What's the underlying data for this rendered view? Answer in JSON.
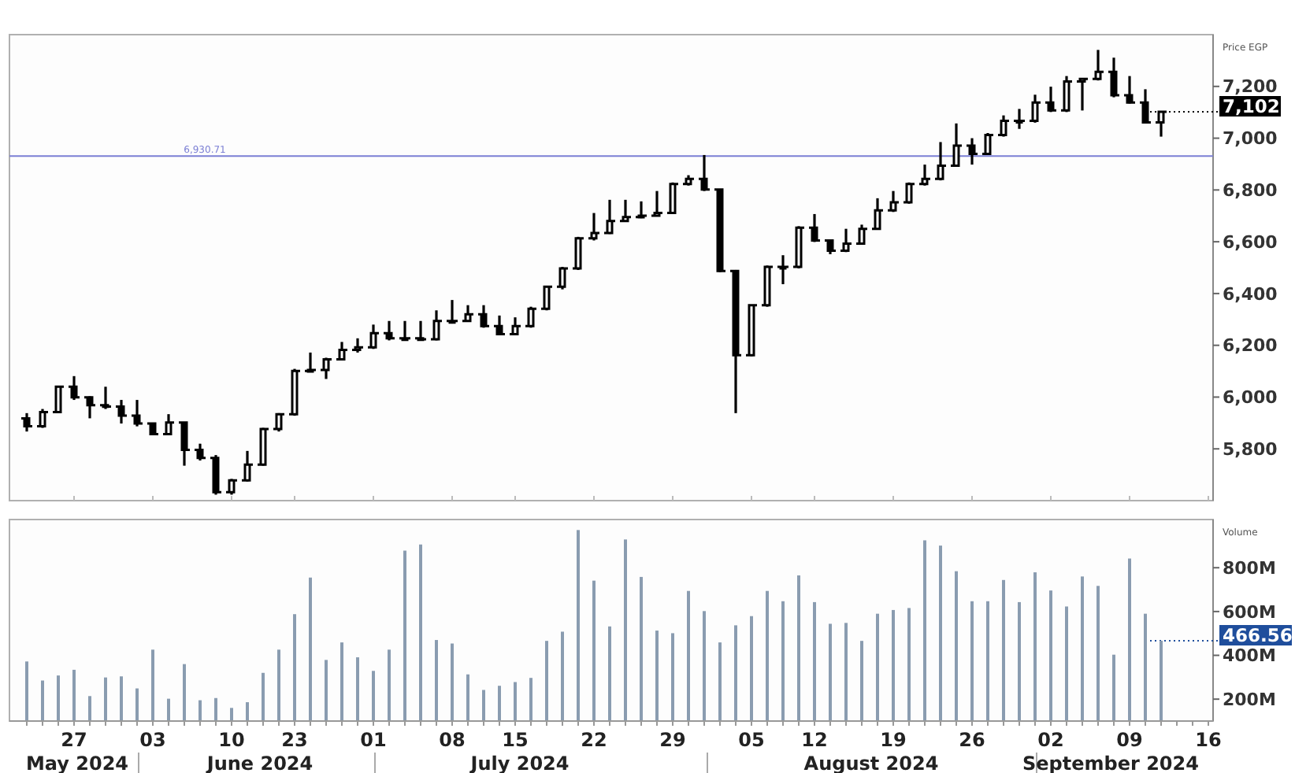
{
  "chart_data": [
    {
      "type": "candlestick",
      "ylabel": "Price EGP",
      "tick_labels": "y",
      "grid": false,
      "color": "#000000",
      "categories": [
        null,
        null,
        null,
        "27",
        null,
        null,
        null,
        null,
        "03",
        null,
        null,
        null,
        null,
        "10",
        null,
        null,
        null,
        "23",
        null,
        null,
        null,
        null,
        "01",
        null,
        null,
        null,
        null,
        "08",
        null,
        null,
        null,
        "15",
        null,
        null,
        null,
        null,
        "22",
        null,
        null,
        null,
        null,
        "29",
        null,
        null,
        null,
        null,
        "05",
        null,
        null,
        null,
        "12",
        null,
        null,
        null,
        null,
        "19",
        null,
        null,
        null,
        null,
        "26",
        null,
        null,
        null,
        null,
        "02",
        null,
        null,
        null,
        null,
        "09",
        null,
        null,
        null,
        null,
        "16"
      ],
      "ohlc": [
        [
          5918,
          5938,
          5867,
          5887
        ],
        [
          5887,
          5954,
          5881,
          5942
        ],
        [
          5942,
          6044,
          5938,
          6040
        ],
        [
          6040,
          6081,
          5989,
          5999
        ],
        [
          5999,
          6003,
          5918,
          5969
        ],
        [
          5969,
          6040,
          5954,
          5963
        ],
        [
          5963,
          5989,
          5898,
          5928
        ],
        [
          5928,
          5989,
          5887,
          5898
        ],
        [
          5898,
          5898,
          5853,
          5857
        ],
        [
          5857,
          5934,
          5853,
          5902
        ],
        [
          5902,
          5902,
          5735,
          5796
        ],
        [
          5796,
          5820,
          5755,
          5765
        ],
        [
          5765,
          5776,
          5623,
          5633
        ],
        [
          5633,
          5684,
          5623,
          5678
        ],
        [
          5678,
          5792,
          5674,
          5739
        ],
        [
          5739,
          5881,
          5735,
          5877
        ],
        [
          5877,
          5938,
          5867,
          5934
        ],
        [
          5934,
          6109,
          5928,
          6101
        ],
        [
          6101,
          6172,
          6097,
          6105
        ],
        [
          6105,
          6152,
          6070,
          6146
        ],
        [
          6146,
          6213,
          6142,
          6182
        ],
        [
          6182,
          6227,
          6172,
          6192
        ],
        [
          6192,
          6280,
          6186,
          6247
        ],
        [
          6247,
          6294,
          6219,
          6227
        ],
        [
          6227,
          6294,
          6219,
          6227
        ],
        [
          6227,
          6294,
          6219,
          6223
        ],
        [
          6223,
          6335,
          6219,
          6294
        ],
        [
          6294,
          6375,
          6284,
          6294
        ],
        [
          6294,
          6355,
          6294,
          6320
        ],
        [
          6320,
          6355,
          6268,
          6274
        ],
        [
          6274,
          6315,
          6239,
          6243
        ],
        [
          6243,
          6308,
          6239,
          6274
        ],
        [
          6274,
          6349,
          6268,
          6341
        ],
        [
          6341,
          6430,
          6335,
          6426
        ],
        [
          6426,
          6503,
          6416,
          6497
        ],
        [
          6497,
          6619,
          6491,
          6613
        ],
        [
          6613,
          6711,
          6605,
          6634
        ],
        [
          6634,
          6762,
          6630,
          6680
        ],
        [
          6680,
          6762,
          6680,
          6695
        ],
        [
          6695,
          6756,
          6691,
          6701
        ],
        [
          6701,
          6796,
          6701,
          6711
        ],
        [
          6711,
          6829,
          6711,
          6823
        ],
        [
          6823,
          6857,
          6817,
          6843
        ],
        [
          6843,
          6935,
          6796,
          6802
        ],
        [
          6802,
          6802,
          6483,
          6487
        ],
        [
          6487,
          6491,
          5938,
          6162
        ],
        [
          6162,
          6355,
          6158,
          6355
        ],
        [
          6355,
          6508,
          6349,
          6503
        ],
        [
          6503,
          6548,
          6436,
          6503
        ],
        [
          6503,
          6660,
          6497,
          6654
        ],
        [
          6654,
          6707,
          6599,
          6605
        ],
        [
          6605,
          6609,
          6552,
          6565
        ],
        [
          6565,
          6650,
          6560,
          6593
        ],
        [
          6593,
          6666,
          6589,
          6650
        ],
        [
          6650,
          6768,
          6646,
          6721
        ],
        [
          6721,
          6796,
          6715,
          6752
        ],
        [
          6752,
          6829,
          6747,
          6823
        ],
        [
          6823,
          6898,
          6817,
          6843
        ],
        [
          6843,
          6985,
          6837,
          6894
        ],
        [
          6894,
          7057,
          6894,
          6971
        ],
        [
          6971,
          7000,
          6898,
          6939
        ],
        [
          6939,
          7020,
          6935,
          7012
        ],
        [
          7012,
          7088,
          7006,
          7067
        ],
        [
          7067,
          7113,
          7036,
          7067
        ],
        [
          7067,
          7168,
          7060,
          7138
        ],
        [
          7138,
          7199,
          7101,
          7107
        ],
        [
          7107,
          7240,
          7101,
          7219
        ],
        [
          7219,
          7229,
          7107,
          7229
        ],
        [
          7229,
          7341,
          7223,
          7256
        ],
        [
          7256,
          7311,
          7158,
          7166
        ],
        [
          7166,
          7240,
          7134,
          7138
        ],
        [
          7138,
          7189,
          7057,
          7061
        ],
        [
          7061,
          7102,
          7006,
          7102
        ],
        null,
        null,
        null
      ],
      "ylim": [
        5600,
        7400
      ],
      "yticks": [
        {
          "value": 5800,
          "label": "5,800"
        },
        {
          "value": 6000,
          "label": "6,000"
        },
        {
          "value": 6200,
          "label": "6,200"
        },
        {
          "value": 6400,
          "label": "6,400"
        },
        {
          "value": 6600,
          "label": "6,600"
        },
        {
          "value": 6800,
          "label": "6,800"
        },
        {
          "value": 7000,
          "label": "7,000"
        },
        {
          "value": 7200,
          "label": "7,200"
        }
      ],
      "ref_lines": [
        {
          "axis": "y",
          "value": 6930.71,
          "label": "6,930.71",
          "color": "#7b7fd4",
          "line_style": "solid"
        },
        {
          "axis": "y",
          "value": 7102,
          "label": "7,102",
          "color": "#000000",
          "line_style": "dotted"
        }
      ]
    },
    {
      "type": "bar",
      "ylabel": "Volume",
      "grid": false,
      "color": "#8a9cb0",
      "categories": [
        null,
        null,
        null,
        "27",
        null,
        null,
        null,
        null,
        "03",
        null,
        null,
        null,
        null,
        "10",
        null,
        null,
        null,
        "23",
        null,
        null,
        null,
        null,
        "01",
        null,
        null,
        null,
        null,
        "08",
        null,
        null,
        null,
        "15",
        null,
        null,
        null,
        null,
        "22",
        null,
        null,
        null,
        null,
        "29",
        null,
        null,
        null,
        null,
        "05",
        null,
        null,
        null,
        "12",
        null,
        null,
        null,
        null,
        "19",
        null,
        null,
        null,
        null,
        "26",
        null,
        null,
        null,
        null,
        "02",
        null,
        null,
        null,
        null,
        "09",
        null,
        null,
        null,
        null,
        "16"
      ],
      "values": [
        372,
        285,
        308,
        334,
        214,
        299,
        304,
        249,
        426,
        202,
        360,
        195,
        205,
        160,
        186,
        320,
        426,
        588,
        755,
        379,
        459,
        391,
        329,
        426,
        878,
        906,
        470,
        454,
        313,
        242,
        261,
        278,
        297,
        466,
        508,
        972,
        741,
        532,
        929,
        758,
        513,
        501,
        694,
        602,
        459,
        537,
        579,
        694,
        647,
        765,
        643,
        544,
        548,
        466,
        590,
        607,
        616,
        925,
        901,
        784,
        647,
        647,
        744,
        643,
        779,
        696,
        623,
        760,
        717,
        403,
        842,
        590,
        466.56,
        null,
        null,
        null
      ],
      "ylim": [
        100,
        1020
      ],
      "yticks": [
        {
          "value": 200,
          "label": "200M"
        },
        {
          "value": 400,
          "label": "400M"
        },
        {
          "value": 600,
          "label": "600M"
        },
        {
          "value": 800,
          "label": "800M"
        }
      ],
      "ref_lines": [
        {
          "axis": "y",
          "value": 466.56,
          "label": "466.56",
          "color": "#1f4e9c",
          "line_style": "dotted"
        }
      ],
      "annotations": [
        "May 2024",
        "June 2024",
        "July 2024",
        "August 2024",
        "September 2024"
      ]
    }
  ]
}
